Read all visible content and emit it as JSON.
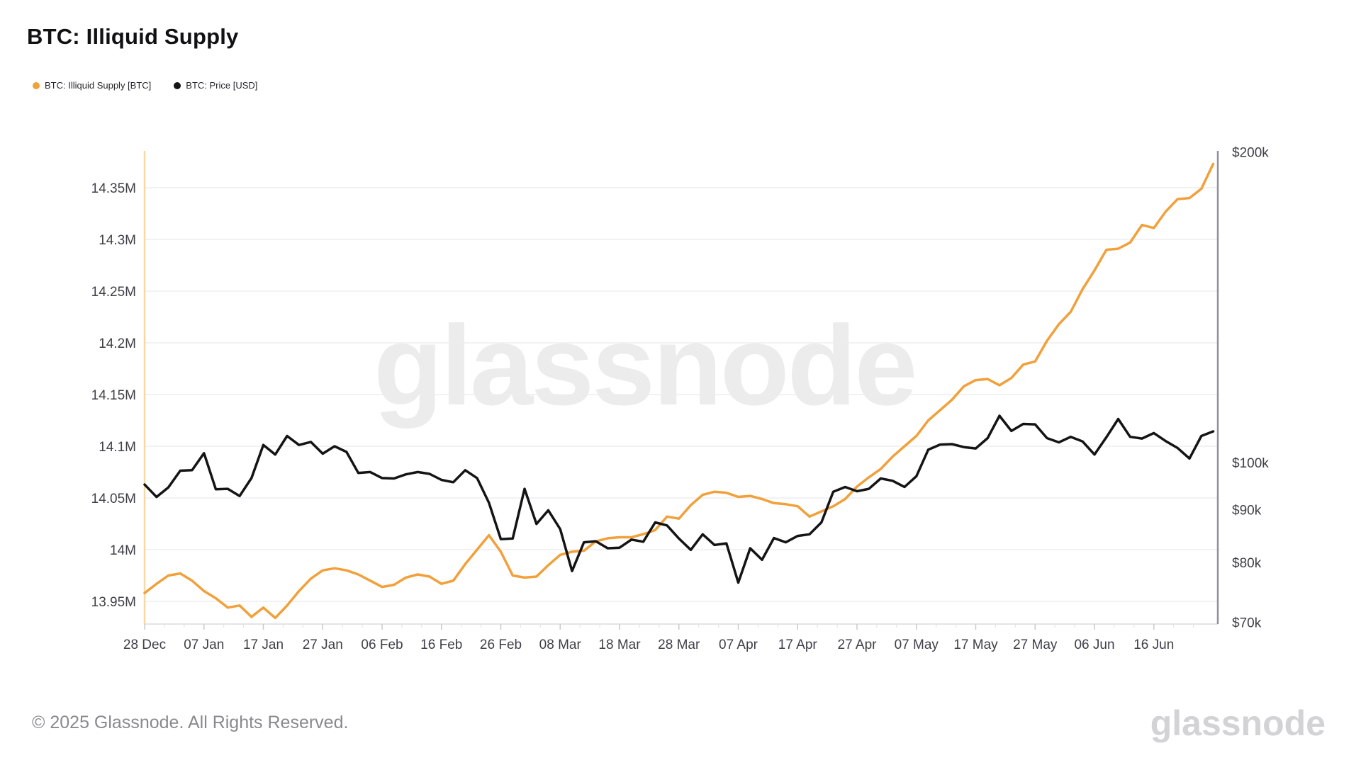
{
  "header": {
    "title": "BTC: Illiquid Supply"
  },
  "legend": {
    "items": [
      {
        "label": "BTC: Illiquid Supply [BTC]",
        "color": "#F1A03A"
      },
      {
        "label": "BTC: Price [USD]",
        "color": "#141414"
      }
    ]
  },
  "watermark_text": "glassnode",
  "footer": {
    "copyright": "© 2025 Glassnode. All Rights Reserved.",
    "logo_text": "glassnode"
  },
  "colors": {
    "supply_line": "#F1A03A",
    "price_line": "#141414",
    "axis_left": "#F8D9A6",
    "axis_right": "#90909A",
    "gridline": "#EDEDF0",
    "baseline": "#DCDCE0",
    "tick": "#C9C9CF",
    "minor_tick": "#E4E4E8",
    "axis_text": "#3F3F48"
  },
  "chart_data": {
    "type": "line",
    "title": "BTC: Illiquid Supply",
    "x_start_date": "28 Dec 2024",
    "x_end_date": "26 Jun 2025",
    "sample_interval_days": 2,
    "x_tick_interval_days": 10,
    "x_tick_labels": [
      "28 Dec",
      "07 Jan",
      "17 Jan",
      "27 Jan",
      "06 Feb",
      "16 Feb",
      "26 Feb",
      "08 Mar",
      "18 Mar",
      "28 Mar",
      "07 Apr",
      "17 Apr",
      "27 Apr",
      "07 May",
      "17 May",
      "27 May",
      "06 Jun",
      "16 Jun"
    ],
    "y_left_axis": {
      "title": "Illiquid Supply [BTC]",
      "scale": "linear",
      "unit": "M BTC",
      "ticks": [
        {
          "label": "14.35M",
          "value": 14.35
        },
        {
          "label": "14.3M",
          "value": 14.3
        },
        {
          "label": "14.25M",
          "value": 14.25
        },
        {
          "label": "14.2M",
          "value": 14.2
        },
        {
          "label": "14.15M",
          "value": 14.15
        },
        {
          "label": "14.1M",
          "value": 14.1
        },
        {
          "label": "14.05M",
          "value": 14.05
        },
        {
          "label": "14M",
          "value": 14.0
        },
        {
          "label": "13.95M",
          "value": 13.95
        }
      ]
    },
    "y_right_axis": {
      "title": "Price [USD]",
      "scale": "log",
      "unit": "$k",
      "ticks": [
        {
          "label": "$200k",
          "value": 200
        },
        {
          "label": "$100k",
          "value": 100
        },
        {
          "label": "$90k",
          "value": 90
        },
        {
          "label": "$80k",
          "value": 80
        },
        {
          "label": "$70k",
          "value": 70
        }
      ]
    },
    "series": [
      {
        "name": "BTC: Illiquid Supply [BTC]",
        "axis": "left",
        "color": "#F1A03A",
        "unit": "M BTC",
        "values": [
          13.958,
          13.967,
          13.975,
          13.977,
          13.97,
          13.96,
          13.953,
          13.944,
          13.946,
          13.935,
          13.944,
          13.934,
          13.946,
          13.96,
          13.972,
          13.98,
          13.982,
          13.98,
          13.976,
          13.97,
          13.964,
          13.966,
          13.973,
          13.976,
          13.974,
          13.967,
          13.97,
          13.986,
          14.0,
          14.014,
          13.998,
          13.975,
          13.973,
          13.974,
          13.985,
          13.995,
          13.998,
          13.999,
          14.008,
          14.011,
          14.012,
          14.012,
          14.015,
          14.019,
          14.032,
          14.03,
          14.043,
          14.053,
          14.056,
          14.055,
          14.051,
          14.052,
          14.049,
          14.045,
          14.044,
          14.042,
          14.032,
          14.037,
          14.042,
          14.049,
          14.061,
          14.07,
          14.078,
          14.09,
          14.1,
          14.11,
          14.125,
          14.135,
          14.145,
          14.158,
          14.164,
          14.165,
          14.159,
          14.166,
          14.179,
          14.182,
          14.202,
          14.218,
          14.23,
          14.252,
          14.27,
          14.29,
          14.291,
          14.297,
          14.314,
          14.311,
          14.327,
          14.339,
          14.34,
          14.349,
          14.373
        ]
      },
      {
        "name": "BTC: Price [USD]",
        "axis": "right",
        "color": "#141414",
        "unit": "$k",
        "values": [
          95.2,
          92.6,
          94.6,
          98.2,
          98.3,
          102.1,
          94.2,
          94.3,
          92.8,
          96.6,
          104.0,
          101.8,
          106.1,
          104.0,
          104.7,
          102.0,
          103.7,
          102.4,
          97.7,
          97.9,
          96.6,
          96.5,
          97.4,
          97.9,
          97.5,
          96.2,
          95.7,
          98.3,
          96.6,
          91.4,
          84.3,
          84.4,
          94.3,
          87.2,
          89.9,
          86.2,
          78.5,
          83.7,
          83.9,
          82.6,
          82.7,
          84.2,
          83.8,
          87.5,
          86.9,
          84.4,
          82.3,
          85.2,
          83.2,
          83.5,
          76.5,
          82.6,
          80.5,
          84.5,
          83.7,
          84.9,
          85.2,
          87.5,
          93.7,
          94.7,
          93.8,
          94.3,
          96.5,
          96.0,
          94.7,
          97.0,
          102.9,
          104.1,
          104.2,
          103.5,
          103.2,
          105.6,
          111.0,
          107.3,
          109.0,
          108.9,
          105.6,
          104.6,
          105.9,
          104.8,
          101.8,
          105.8,
          110.2,
          105.9,
          105.5,
          106.8,
          104.9,
          103.3,
          100.9,
          106.1,
          107.2
        ]
      }
    ],
    "layout_hints": {
      "grid": "horizontal-only",
      "legend_position": "top-left",
      "left_axis_line_color": "pale-orange",
      "right_axis_line_color": "gray"
    }
  }
}
